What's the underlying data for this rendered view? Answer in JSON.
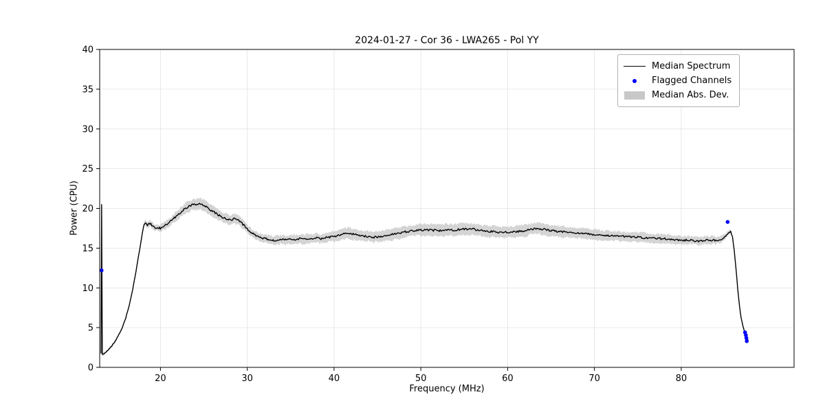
{
  "chart_data": {
    "type": "line",
    "title": "2024-01-27 - Cor 36 - LWA265 - Pol YY",
    "xlabel": "Frequency (MHz)",
    "ylabel": "Power (CPU)",
    "xlim": [
      13,
      93
    ],
    "ylim": [
      0,
      40
    ],
    "xticks": [
      20,
      30,
      40,
      50,
      60,
      70,
      80
    ],
    "yticks": [
      0,
      5,
      10,
      15,
      20,
      25,
      30,
      35,
      40
    ],
    "grid": true,
    "colors": {
      "line": "#000000",
      "band": "#c6c6c6",
      "flagged": "#0000ff",
      "grid": "#e3e3e3",
      "spine": "#000000",
      "tick_label": "#000000"
    },
    "legend": {
      "position": "upper right",
      "entries": [
        {
          "label": "Median Spectrum",
          "type": "line",
          "color": "#000000"
        },
        {
          "label": "Flagged Channels",
          "type": "marker",
          "color": "#0000ff"
        },
        {
          "label": "Median Abs. Dev.",
          "type": "band",
          "color": "#c8c8c8"
        }
      ]
    },
    "series": [
      {
        "name": "Median Spectrum",
        "color": "#000000",
        "note": "points are [frequency_MHz, power_CPU, median_abs_dev]",
        "points": [
          [
            13.15,
            1.8,
            0.2
          ],
          [
            13.22,
            20.5,
            0.3
          ],
          [
            13.3,
            1.6,
            0.2
          ],
          [
            13.6,
            1.8,
            0.15
          ],
          [
            14.0,
            2.2,
            0.15
          ],
          [
            14.4,
            2.7,
            0.15
          ],
          [
            14.8,
            3.3,
            0.15
          ],
          [
            15.2,
            4.1,
            0.15
          ],
          [
            15.6,
            5.0,
            0.15
          ],
          [
            16.0,
            6.2,
            0.15
          ],
          [
            16.4,
            7.8,
            0.15
          ],
          [
            16.8,
            9.8,
            0.15
          ],
          [
            17.2,
            12.2,
            0.15
          ],
          [
            17.6,
            14.8,
            0.2
          ],
          [
            17.9,
            16.8,
            0.25
          ],
          [
            18.1,
            18.0,
            0.3
          ],
          [
            18.3,
            18.2,
            0.35
          ],
          [
            18.5,
            17.9,
            0.4
          ],
          [
            18.8,
            18.1,
            0.4
          ],
          [
            19.1,
            17.8,
            0.4
          ],
          [
            19.4,
            17.5,
            0.4
          ],
          [
            19.7,
            17.6,
            0.42
          ],
          [
            20.0,
            17.5,
            0.45
          ],
          [
            20.3,
            17.7,
            0.45
          ],
          [
            20.6,
            17.9,
            0.5
          ],
          [
            21.0,
            18.2,
            0.5
          ],
          [
            21.4,
            18.6,
            0.55
          ],
          [
            21.8,
            19.0,
            0.55
          ],
          [
            22.2,
            19.4,
            0.6
          ],
          [
            22.6,
            19.8,
            0.6
          ],
          [
            23.0,
            20.1,
            0.65
          ],
          [
            23.4,
            20.3,
            0.65
          ],
          [
            23.8,
            20.5,
            0.7
          ],
          [
            24.2,
            20.5,
            0.7
          ],
          [
            24.6,
            20.6,
            0.7
          ],
          [
            25.0,
            20.4,
            0.7
          ],
          [
            25.4,
            20.1,
            0.7
          ],
          [
            25.8,
            19.8,
            0.65
          ],
          [
            26.2,
            19.5,
            0.65
          ],
          [
            26.6,
            19.2,
            0.6
          ],
          [
            27.0,
            19.0,
            0.6
          ],
          [
            27.4,
            18.8,
            0.6
          ],
          [
            27.8,
            18.6,
            0.6
          ],
          [
            28.2,
            18.5,
            0.6
          ],
          [
            28.5,
            18.7,
            0.6
          ],
          [
            28.8,
            18.6,
            0.6
          ],
          [
            29.2,
            18.3,
            0.6
          ],
          [
            29.6,
            17.9,
            0.55
          ],
          [
            30.0,
            17.4,
            0.55
          ],
          [
            30.4,
            17.0,
            0.5
          ],
          [
            30.8,
            16.7,
            0.5
          ],
          [
            31.2,
            16.5,
            0.5
          ],
          [
            31.6,
            16.3,
            0.5
          ],
          [
            32.0,
            16.2,
            0.5
          ],
          [
            32.5,
            16.1,
            0.5
          ],
          [
            33.0,
            16.0,
            0.5
          ],
          [
            33.5,
            16.0,
            0.55
          ],
          [
            34.0,
            16.1,
            0.55
          ],
          [
            34.5,
            16.0,
            0.55
          ],
          [
            35.0,
            16.1,
            0.55
          ],
          [
            35.5,
            16.1,
            0.55
          ],
          [
            36.0,
            16.2,
            0.55
          ],
          [
            36.5,
            16.1,
            0.6
          ],
          [
            37.0,
            16.2,
            0.6
          ],
          [
            37.5,
            16.2,
            0.6
          ],
          [
            38.0,
            16.3,
            0.6
          ],
          [
            38.5,
            16.2,
            0.6
          ],
          [
            39.0,
            16.3,
            0.6
          ],
          [
            39.5,
            16.4,
            0.6
          ],
          [
            40.0,
            16.5,
            0.65
          ],
          [
            40.5,
            16.6,
            0.65
          ],
          [
            41.0,
            16.8,
            0.7
          ],
          [
            41.5,
            16.9,
            0.7
          ],
          [
            42.0,
            16.8,
            0.7
          ],
          [
            42.5,
            16.7,
            0.7
          ],
          [
            43.0,
            16.6,
            0.65
          ],
          [
            43.5,
            16.5,
            0.65
          ],
          [
            44.0,
            16.5,
            0.65
          ],
          [
            44.5,
            16.4,
            0.65
          ],
          [
            45.0,
            16.4,
            0.65
          ],
          [
            45.5,
            16.5,
            0.65
          ],
          [
            46.0,
            16.6,
            0.7
          ],
          [
            46.5,
            16.7,
            0.7
          ],
          [
            47.0,
            16.8,
            0.7
          ],
          [
            47.5,
            16.9,
            0.7
          ],
          [
            48.0,
            17.0,
            0.7
          ],
          [
            48.5,
            17.1,
            0.7
          ],
          [
            49.0,
            17.2,
            0.7
          ],
          [
            50.0,
            17.3,
            0.75
          ],
          [
            51.0,
            17.3,
            0.75
          ],
          [
            52.0,
            17.2,
            0.75
          ],
          [
            53.0,
            17.3,
            0.75
          ],
          [
            54.0,
            17.3,
            0.75
          ],
          [
            55.0,
            17.4,
            0.75
          ],
          [
            56.0,
            17.4,
            0.7
          ],
          [
            57.0,
            17.2,
            0.7
          ],
          [
            58.0,
            17.1,
            0.7
          ],
          [
            59.0,
            17.0,
            0.7
          ],
          [
            60.0,
            17.0,
            0.7
          ],
          [
            61.0,
            17.1,
            0.7
          ],
          [
            62.0,
            17.2,
            0.7
          ],
          [
            62.8,
            17.4,
            0.7
          ],
          [
            63.5,
            17.5,
            0.7
          ],
          [
            64.0,
            17.4,
            0.7
          ],
          [
            64.5,
            17.3,
            0.7
          ],
          [
            65.0,
            17.2,
            0.7
          ],
          [
            66.0,
            17.1,
            0.7
          ],
          [
            67.0,
            17.0,
            0.65
          ],
          [
            68.0,
            16.9,
            0.65
          ],
          [
            69.0,
            16.8,
            0.65
          ],
          [
            70.0,
            16.7,
            0.65
          ],
          [
            71.0,
            16.6,
            0.6
          ],
          [
            72.0,
            16.6,
            0.6
          ],
          [
            73.0,
            16.5,
            0.6
          ],
          [
            74.0,
            16.4,
            0.6
          ],
          [
            75.0,
            16.4,
            0.6
          ],
          [
            76.0,
            16.3,
            0.6
          ],
          [
            77.0,
            16.2,
            0.6
          ],
          [
            78.0,
            16.2,
            0.55
          ],
          [
            79.0,
            16.1,
            0.55
          ],
          [
            80.0,
            16.0,
            0.55
          ],
          [
            81.0,
            16.0,
            0.5
          ],
          [
            82.0,
            15.9,
            0.5
          ],
          [
            83.0,
            16.0,
            0.5
          ],
          [
            84.0,
            16.0,
            0.45
          ],
          [
            84.6,
            16.1,
            0.4
          ],
          [
            85.0,
            16.4,
            0.35
          ],
          [
            85.4,
            16.9,
            0.3
          ],
          [
            85.7,
            17.1,
            0.25
          ],
          [
            85.9,
            16.4,
            0.2
          ],
          [
            86.1,
            14.8,
            0.2
          ],
          [
            86.3,
            12.5,
            0.2
          ],
          [
            86.5,
            10.0,
            0.15
          ],
          [
            86.7,
            7.8,
            0.15
          ],
          [
            86.9,
            6.2,
            0.15
          ],
          [
            87.1,
            5.2,
            0.15
          ],
          [
            87.3,
            4.5,
            0.1
          ],
          [
            87.5,
            3.9,
            0.1
          ],
          [
            87.7,
            3.4,
            0.1
          ]
        ]
      }
    ],
    "flagged_channels": [
      [
        13.22,
        12.2
      ],
      [
        85.35,
        18.3
      ],
      [
        87.35,
        4.4
      ],
      [
        87.45,
        4.05
      ],
      [
        87.5,
        3.7
      ],
      [
        87.55,
        3.3
      ]
    ],
    "jitter_amplitude": 0.13
  }
}
